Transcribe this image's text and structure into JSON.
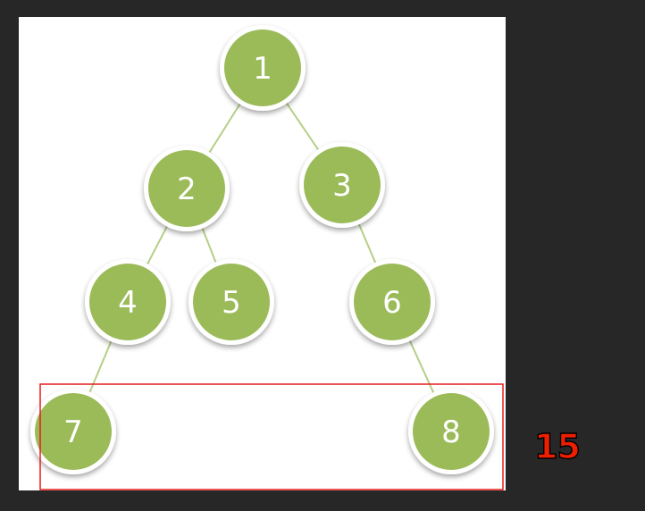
{
  "tree": {
    "nodes": [
      {
        "id": "n1",
        "label": "1"
      },
      {
        "id": "n2",
        "label": "2"
      },
      {
        "id": "n3",
        "label": "3"
      },
      {
        "id": "n4",
        "label": "4"
      },
      {
        "id": "n5",
        "label": "5"
      },
      {
        "id": "n6",
        "label": "6"
      },
      {
        "id": "n7",
        "label": "7"
      },
      {
        "id": "n8",
        "label": "8"
      }
    ],
    "edges": [
      [
        "n1",
        "n2"
      ],
      [
        "n1",
        "n3"
      ],
      [
        "n2",
        "n4"
      ],
      [
        "n2",
        "n5"
      ],
      [
        "n3",
        "n6"
      ],
      [
        "n4",
        "n7"
      ],
      [
        "n6",
        "n8"
      ]
    ]
  },
  "highlight": {
    "nodes": [
      "n7",
      "n8"
    ],
    "sum_label": "15"
  },
  "colors": {
    "background": "#272727",
    "panel": "#ffffff",
    "node_fill": "#9bbb59",
    "node_ring": "#ffffff",
    "edge": "#b5cf86",
    "highlight_box": "#e81c1c",
    "sum_text": "#ee1f00"
  }
}
